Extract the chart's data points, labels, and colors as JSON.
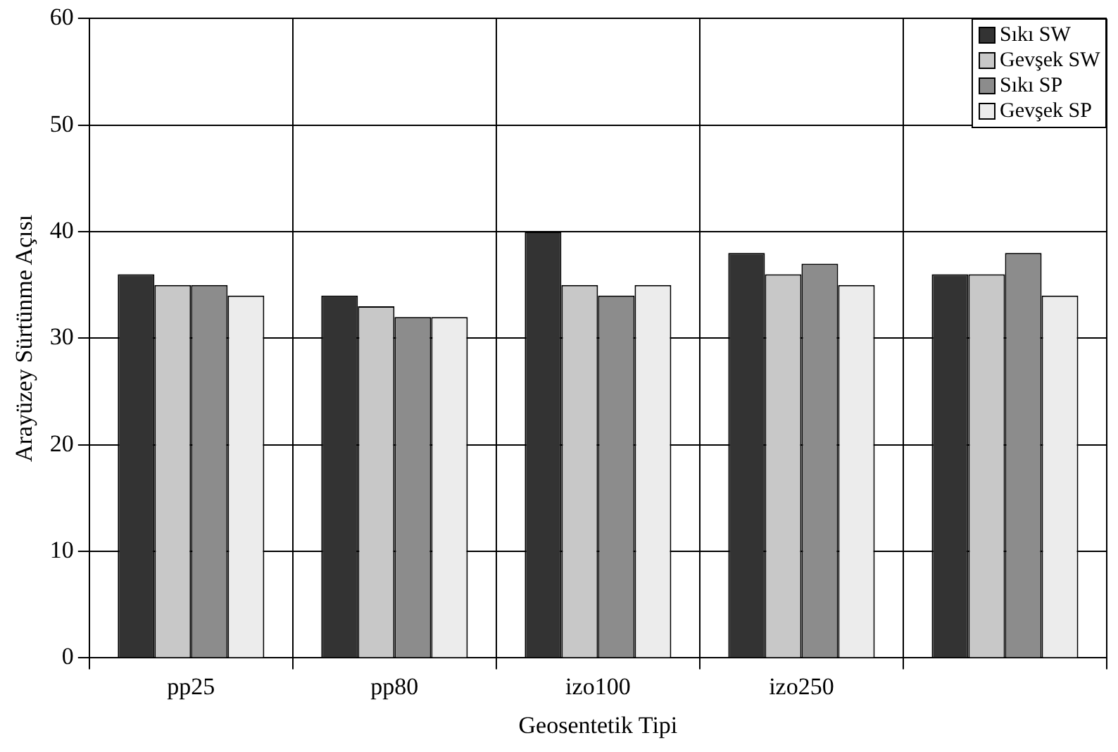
{
  "chart_data": {
    "type": "bar",
    "xlabel": "Geosentetik Tipi",
    "ylabel": "Arayüzey Sürtünme Açısı",
    "categories": [
      "pp25",
      "pp80",
      "izo100",
      "izo250",
      null
    ],
    "series": [
      {
        "name": "Sıkı SW",
        "color": "#333333",
        "values": [
          36,
          34,
          40,
          38,
          36
        ]
      },
      {
        "name": "Gevşek SW",
        "color": "#c8c8c8",
        "values": [
          35,
          33,
          35,
          36,
          36
        ]
      },
      {
        "name": "Sıkı SP",
        "color": "#8c8c8c",
        "values": [
          35,
          32,
          34,
          37,
          38
        ]
      },
      {
        "name": "Gevşek SP",
        "color": "#ececec",
        "values": [
          34,
          32,
          35,
          35,
          34
        ]
      }
    ],
    "ylim": [
      0,
      60
    ],
    "yticks": [
      0,
      10,
      20,
      30,
      40,
      50,
      60
    ],
    "grid": true,
    "legend": "top right"
  }
}
